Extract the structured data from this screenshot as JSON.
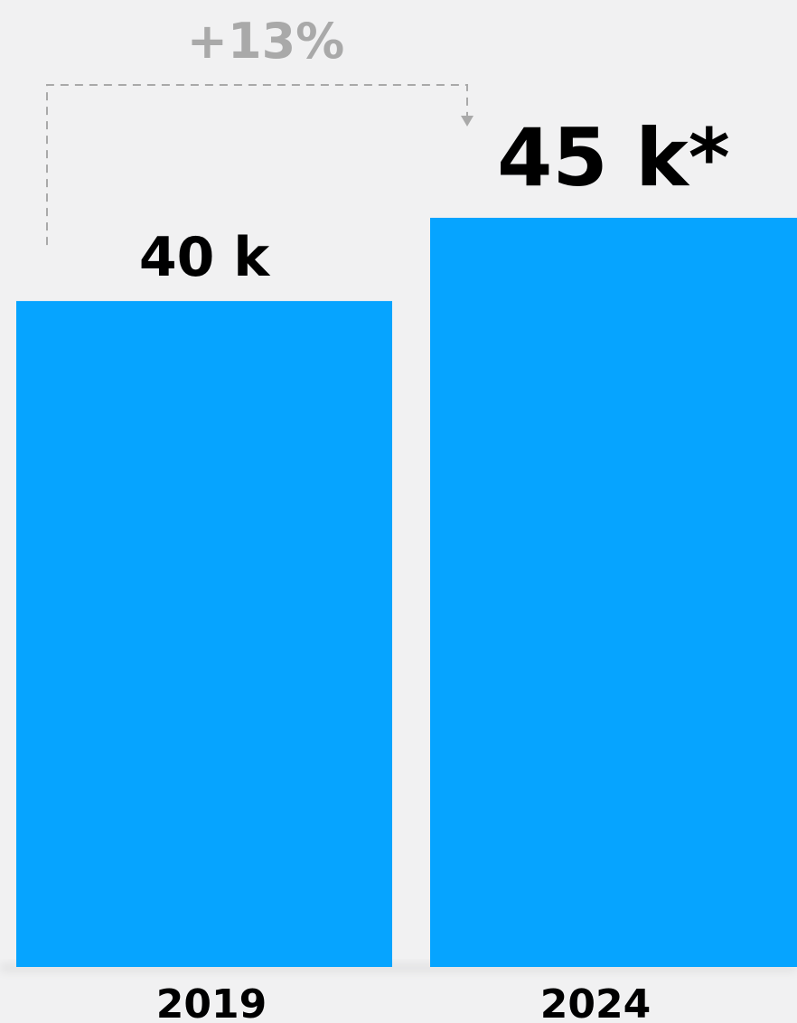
{
  "chart_data": {
    "type": "bar",
    "categories": [
      "2019",
      "2024"
    ],
    "values": [
      40,
      45
    ],
    "value_labels": [
      "40 k",
      "45 k*"
    ],
    "unit": "k",
    "ylim": [
      0,
      45
    ],
    "grid": false,
    "legend": "none",
    "annotations": [
      {
        "text": "+13%",
        "from": "2019",
        "to": "2024",
        "style": "dashed-arrow"
      }
    ],
    "colors": {
      "bar": "#06a4ff",
      "background": "#f1f1f2",
      "annotation": "#a9a9a9",
      "text": "#000000"
    }
  }
}
